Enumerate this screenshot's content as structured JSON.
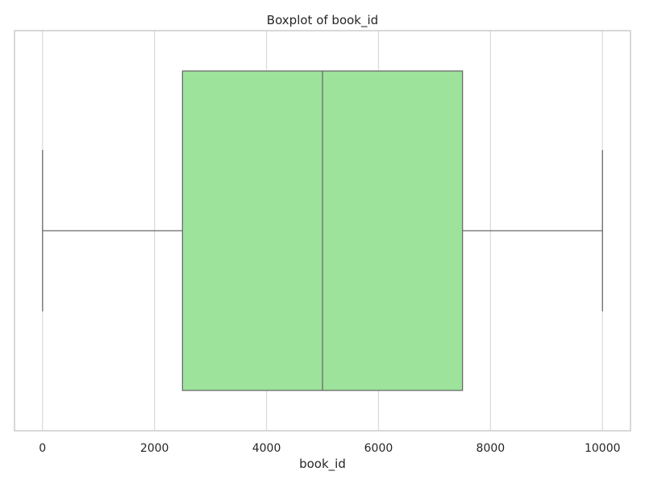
{
  "chart_data": {
    "type": "boxplot",
    "orientation": "horizontal",
    "title": "Boxplot of book_id",
    "xlabel": "book_id",
    "ylabel": "",
    "xlim": [
      -500,
      10500
    ],
    "xticks": [
      0,
      2000,
      4000,
      6000,
      8000,
      10000
    ],
    "grid": true,
    "legend": "none",
    "box": {
      "whisker_low": 1,
      "q1": 2500,
      "median": 5000,
      "q3": 7500,
      "whisker_high": 10000
    },
    "colors": {
      "box_fill": "#9de39b",
      "box_edge": "#6b6b6b",
      "grid": "#d9d9d9",
      "frame": "#cccccc"
    }
  }
}
